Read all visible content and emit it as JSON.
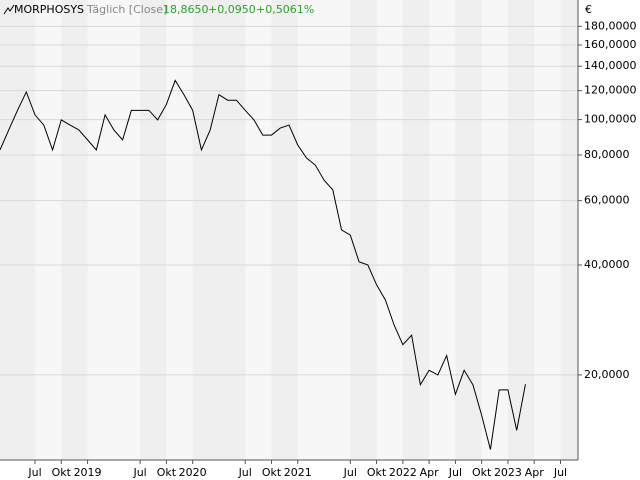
{
  "chart_data": {
    "type": "line",
    "title": "MORPHOSYS",
    "subtitle": "Täglich [Close]",
    "annotations": [
      "18,8650",
      "+0,0950",
      "+0,5061%"
    ],
    "y_label": "€",
    "log_scale": true,
    "grid": true,
    "x": [
      "2018-03",
      "2018-04",
      "2018-05",
      "2018-06",
      "2018-07",
      "2018-08",
      "2018-09",
      "2018-10",
      "2018-11",
      "2018-12",
      "2019-01",
      "2019-02",
      "2019-03",
      "2019-04",
      "2019-05",
      "2019-06",
      "2019-07",
      "2019-08",
      "2019-09",
      "2019-10",
      "2019-11",
      "2019-12",
      "2020-01",
      "2020-02",
      "2020-03",
      "2020-04",
      "2020-05",
      "2020-06",
      "2020-07",
      "2020-08",
      "2020-09",
      "2020-10",
      "2020-11",
      "2020-12",
      "2021-01",
      "2021-02",
      "2021-03",
      "2021-04",
      "2021-05",
      "2021-06",
      "2021-07",
      "2021-08",
      "2021-09",
      "2021-10",
      "2021-11",
      "2021-12",
      "2022-01",
      "2022-02",
      "2022-03",
      "2022-04",
      "2022-05",
      "2022-06",
      "2022-07",
      "2022-08",
      "2022-09",
      "2022-10",
      "2022-11",
      "2022-12",
      "2023-01",
      "2023-02",
      "2023-03"
    ],
    "series": [
      {
        "name": "MORPHOSYS",
        "color": "#000000",
        "values": [
          82.6,
          93.7,
          106,
          119,
          103,
          96.6,
          82.6,
          99.8,
          96.6,
          93.7,
          88,
          82.6,
          103,
          93.7,
          88,
          106,
          106,
          106,
          99.8,
          110,
          128,
          117,
          106,
          82.6,
          93.7,
          117,
          113,
          113,
          106,
          99.8,
          90.7,
          90.7,
          94.8,
          96.6,
          85.2,
          78.5,
          75.1,
          68.3,
          64.2,
          49.9,
          48.3,
          40.8,
          40,
          35.3,
          32.1,
          27.4,
          24.2,
          25.7,
          18.8,
          20.6,
          20,
          22.6,
          17.7,
          20.6,
          18.8,
          15.5,
          12.5,
          18.2,
          18.2,
          14.1,
          18.865
        ]
      }
    ],
    "xlim": [
      "2018-03",
      "2023-09"
    ],
    "xticks": [
      {
        "value": "2018-07",
        "label": "Jul"
      },
      {
        "value": "2018-10",
        "label": "Okt"
      },
      {
        "value": "2019-01",
        "label": "2019"
      },
      {
        "value": "2019-07",
        "label": "Jul"
      },
      {
        "value": "2019-10",
        "label": "Okt"
      },
      {
        "value": "2020-01",
        "label": "2020"
      },
      {
        "value": "2020-07",
        "label": "Jul"
      },
      {
        "value": "2020-10",
        "label": "Okt"
      },
      {
        "value": "2021-01",
        "label": "2021"
      },
      {
        "value": "2021-07",
        "label": "Jul"
      },
      {
        "value": "2021-10",
        "label": "Okt"
      },
      {
        "value": "2022-01",
        "label": "2022"
      },
      {
        "value": "2022-04",
        "label": "Apr"
      },
      {
        "value": "2022-07",
        "label": "Jul"
      },
      {
        "value": "2022-10",
        "label": "Okt"
      },
      {
        "value": "2023-01",
        "label": "2023"
      },
      {
        "value": "2023-04",
        "label": "Apr"
      },
      {
        "value": "2023-07",
        "label": "Jul"
      }
    ],
    "ylim": [
      11.7,
      189.7
    ],
    "yticks": [
      {
        "value": 20,
        "label": "20,0000"
      },
      {
        "value": 40,
        "label": "40,0000"
      },
      {
        "value": 60,
        "label": "60,0000"
      },
      {
        "value": 80,
        "label": "80,0000"
      },
      {
        "value": 100,
        "label": "100,0000"
      },
      {
        "value": 120,
        "label": "120,0000"
      },
      {
        "value": 140,
        "label": "140,0000"
      },
      {
        "value": 160,
        "label": "160,0000"
      },
      {
        "value": 180,
        "label": "180,0000"
      }
    ]
  }
}
